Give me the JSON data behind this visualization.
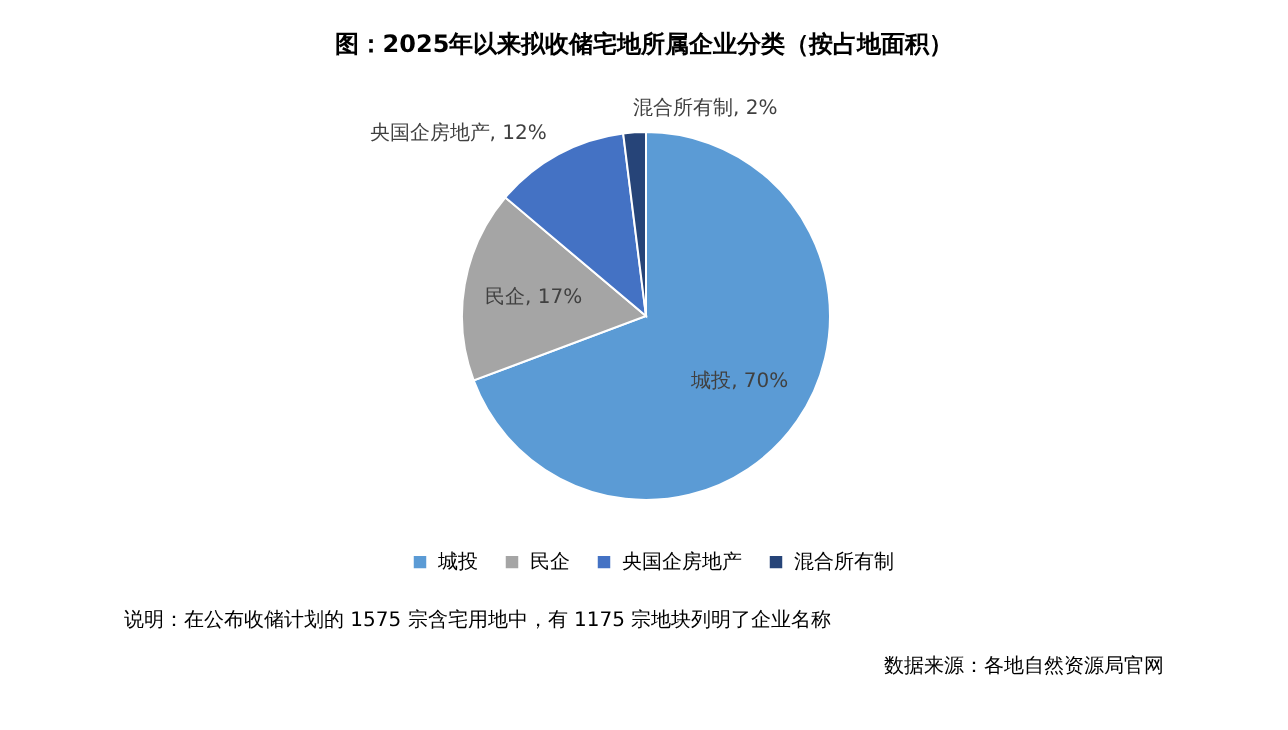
{
  "chart_data": {
    "type": "pie",
    "title": "图：2025年以来拟收储宅地所属企业分类（按占地面积）",
    "categories": [
      "城投",
      "民企",
      "央国企房地产",
      "混合所有制"
    ],
    "values": [
      70,
      17,
      12,
      2
    ],
    "colors": [
      "#5b9bd5",
      "#a5a5a5",
      "#4472c4",
      "#264478"
    ],
    "value_labels": [
      "城投, 70%",
      "民企, 17%",
      "央国企房地产, 12%",
      "混合所有制, 2%"
    ],
    "legend": "bottom",
    "annotations": [
      "说明：在公布收储计划的 1575 宗含宅用地中，有 1175 宗地块列明了企业名称",
      "数据来源：各地自然资源局官网"
    ]
  }
}
